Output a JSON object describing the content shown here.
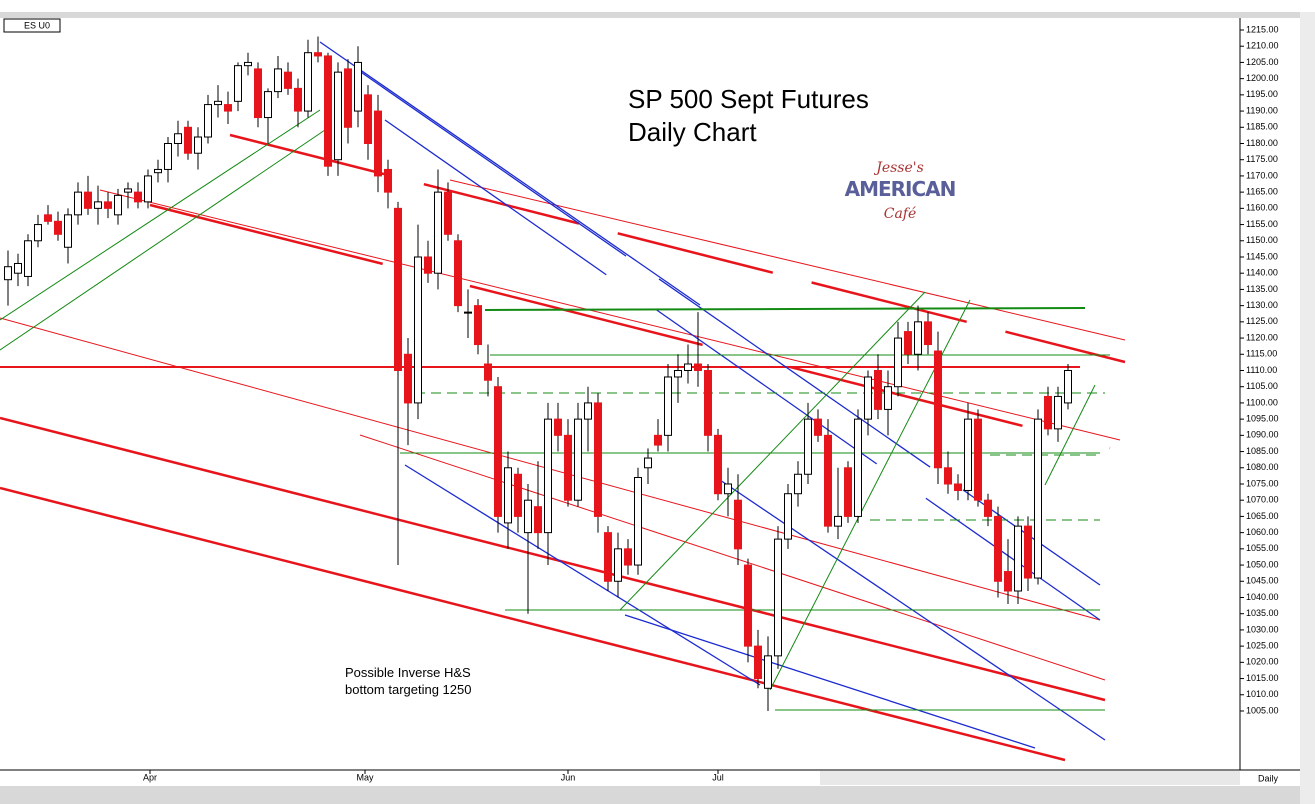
{
  "chart_data": {
    "type": "candlestick",
    "title": "SP 500 Sept Futures",
    "subtitle": "Daily Chart",
    "symbol": "ES U0",
    "period": "Daily",
    "annotations": [
      "Possible Inverse H&S",
      "bottom targeting 1250"
    ],
    "logo": [
      "Jesse's",
      "AMERICAN",
      "Café"
    ],
    "up_color": "#ffffff",
    "down_color": "#e8141b",
    "open": [
      1138,
      1140,
      1139,
      1150,
      1158,
      1156,
      1148,
      1158,
      1165,
      1160,
      1162,
      1158,
      1165,
      1165,
      1162,
      1171,
      1172,
      1180,
      1185,
      1177,
      1182,
      1192,
      1192,
      1193,
      1204,
      1203,
      1188,
      1196,
      1202,
      1197,
      1190,
      1208,
      1207,
      1175,
      1203,
      1190,
      1195,
      1190,
      1172,
      1160,
      1115,
      1100,
      1145,
      1140,
      1165,
      1150,
      1128,
      1130,
      1112,
      1105,
      1063,
      1078,
      1060,
      1068,
      1060,
      1095,
      1090,
      1070,
      1095,
      1100,
      1060,
      1045,
      1055,
      1050,
      1080,
      1090,
      1090,
      1108,
      1110,
      1112,
      1110,
      1090,
      1072,
      1070,
      1050,
      1025,
      1012,
      1022,
      1058,
      1072,
      1078,
      1095,
      1090,
      1062,
      1080,
      1065,
      1095,
      1110,
      1098,
      1105,
      1122,
      1115,
      1125,
      1116,
      1080,
      1075,
      1073,
      1095,
      1070,
      1065,
      1048,
      1042,
      1062,
      1046,
      1102,
      1092,
      1100
    ],
    "high": [
      1147,
      1146,
      1152,
      1158,
      1161,
      1159,
      1160,
      1168,
      1170,
      1167,
      1165,
      1166,
      1168,
      1168,
      1172,
      1175,
      1182,
      1187,
      1187,
      1185,
      1195,
      1198,
      1196,
      1205,
      1208,
      1205,
      1197,
      1207,
      1205,
      1200,
      1212,
      1213,
      1208,
      1205,
      1206,
      1210,
      1198,
      1195,
      1175,
      1162,
      1120,
      1155,
      1150,
      1172,
      1168,
      1152,
      1135,
      1132,
      1118,
      1108,
      1085,
      1080,
      1075,
      1082,
      1100,
      1100,
      1095,
      1100,
      1105,
      1103,
      1062,
      1060,
      1058,
      1080,
      1086,
      1095,
      1112,
      1115,
      1118,
      1128,
      1112,
      1092,
      1080,
      1078,
      1052,
      1030,
      1028,
      1062,
      1075,
      1082,
      1100,
      1098,
      1095,
      1080,
      1082,
      1098,
      1110,
      1115,
      1110,
      1125,
      1125,
      1130,
      1128,
      1122,
      1085,
      1078,
      1100,
      1098,
      1072,
      1068,
      1058,
      1065,
      1065,
      1098,
      1105,
      1105,
      1112
    ],
    "low": [
      1130,
      1136,
      1136,
      1148,
      1155,
      1150,
      1143,
      1155,
      1158,
      1155,
      1157,
      1155,
      1160,
      1160,
      1160,
      1168,
      1168,
      1176,
      1175,
      1172,
      1180,
      1188,
      1186,
      1190,
      1201,
      1185,
      1180,
      1194,
      1195,
      1185,
      1188,
      1205,
      1170,
      1170,
      1180,
      1185,
      1175,
      1165,
      1160,
      1050,
      1087,
      1095,
      1137,
      1135,
      1150,
      1128,
      1120,
      1115,
      1102,
      1060,
      1055,
      1060,
      1035,
      1055,
      1050,
      1085,
      1068,
      1068,
      1085,
      1060,
      1042,
      1040,
      1047,
      1047,
      1075,
      1085,
      1085,
      1100,
      1106,
      1105,
      1085,
      1070,
      1065,
      1050,
      1020,
      1012,
      1005,
      1018,
      1055,
      1068,
      1075,
      1088,
      1060,
      1058,
      1063,
      1063,
      1090,
      1095,
      1090,
      1102,
      1112,
      1110,
      1115,
      1075,
      1072,
      1070,
      1070,
      1068,
      1062,
      1040,
      1038,
      1038,
      1042,
      1044,
      1090,
      1088,
      1098
    ],
    "close": [
      1142,
      1143,
      1150,
      1155,
      1156,
      1152,
      1158,
      1165,
      1160,
      1162,
      1160,
      1164,
      1166,
      1162,
      1170,
      1172,
      1180,
      1183,
      1177,
      1182,
      1192,
      1193,
      1190,
      1204,
      1205,
      1188,
      1196,
      1203,
      1197,
      1190,
      1208,
      1207,
      1173,
      1202,
      1185,
      1205,
      1180,
      1170,
      1165,
      1110,
      1100,
      1145,
      1140,
      1165,
      1152,
      1130,
      1128,
      1118,
      1107,
      1065,
      1080,
      1065,
      1070,
      1060,
      1095,
      1090,
      1070,
      1095,
      1100,
      1065,
      1045,
      1055,
      1050,
      1077,
      1083,
      1087,
      1108,
      1110,
      1112,
      1110,
      1090,
      1072,
      1075,
      1055,
      1025,
      1015,
      1022,
      1058,
      1072,
      1078,
      1095,
      1090,
      1062,
      1065,
      1065,
      1095,
      1108,
      1098,
      1105,
      1120,
      1115,
      1125,
      1118,
      1080,
      1075,
      1073,
      1095,
      1070,
      1065,
      1045,
      1042,
      1062,
      1046,
      1095,
      1092,
      1102,
      1110
    ],
    "xlim": [
      -0.8,
      123.2
    ],
    "xticks": [
      {
        "value": 14.2,
        "label": "Apr"
      },
      {
        "value": 35.7,
        "label": "May"
      },
      {
        "value": 56,
        "label": "Jun"
      },
      {
        "value": 71,
        "label": "Jul"
      }
    ],
    "ylim": [
      986.8,
      1218.7
    ],
    "yticks": [
      {
        "value": 1005,
        "label": "1005.00"
      },
      {
        "value": 1010,
        "label": "1010.00"
      },
      {
        "value": 1015,
        "label": "1015.00"
      },
      {
        "value": 1020,
        "label": "1020.00"
      },
      {
        "value": 1025,
        "label": "1025.00"
      },
      {
        "value": 1030,
        "label": "1030.00"
      },
      {
        "value": 1035,
        "label": "1035.00"
      },
      {
        "value": 1040,
        "label": "1040.00"
      },
      {
        "value": 1045,
        "label": "1045.00"
      },
      {
        "value": 1050,
        "label": "1050.00"
      },
      {
        "value": 1055,
        "label": "1055.00"
      },
      {
        "value": 1060,
        "label": "1060.00"
      },
      {
        "value": 1065,
        "label": "1065.00"
      },
      {
        "value": 1070,
        "label": "1070.00"
      },
      {
        "value": 1075,
        "label": "1075.00"
      },
      {
        "value": 1080,
        "label": "1080.00"
      },
      {
        "value": 1085,
        "label": "1085.00"
      },
      {
        "value": 1090,
        "label": "1090.00"
      },
      {
        "value": 1095,
        "label": "1095.00"
      },
      {
        "value": 1100,
        "label": "1100.00"
      },
      {
        "value": 1105,
        "label": "1105.00"
      },
      {
        "value": 1110,
        "label": "1110.00"
      },
      {
        "value": 1115,
        "label": "1115.00"
      },
      {
        "value": 1120,
        "label": "1120.00"
      },
      {
        "value": 1125,
        "label": "1125.00"
      },
      {
        "value": 1130,
        "label": "1130.00"
      },
      {
        "value": 1135,
        "label": "1135.00"
      },
      {
        "value": 1140,
        "label": "1140.00"
      },
      {
        "value": 1145,
        "label": "1145.00"
      },
      {
        "value": 1150,
        "label": "1150.00"
      },
      {
        "value": 1155,
        "label": "1155.00"
      },
      {
        "value": 1160,
        "label": "1160.00"
      },
      {
        "value": 1165,
        "label": "1165.00"
      },
      {
        "value": 1170,
        "label": "1170.00"
      },
      {
        "value": 1175,
        "label": "1175.00"
      },
      {
        "value": 1180,
        "label": "1180.00"
      },
      {
        "value": 1185,
        "label": "1185.00"
      },
      {
        "value": 1190,
        "label": "1190.00"
      },
      {
        "value": 1195,
        "label": "1195.00"
      },
      {
        "value": 1200,
        "label": "1200.00"
      },
      {
        "value": 1205,
        "label": "1205.00"
      },
      {
        "value": 1210,
        "label": "1210.00"
      },
      {
        "value": 1215,
        "label": "1215.00"
      }
    ],
    "grid": false
  }
}
